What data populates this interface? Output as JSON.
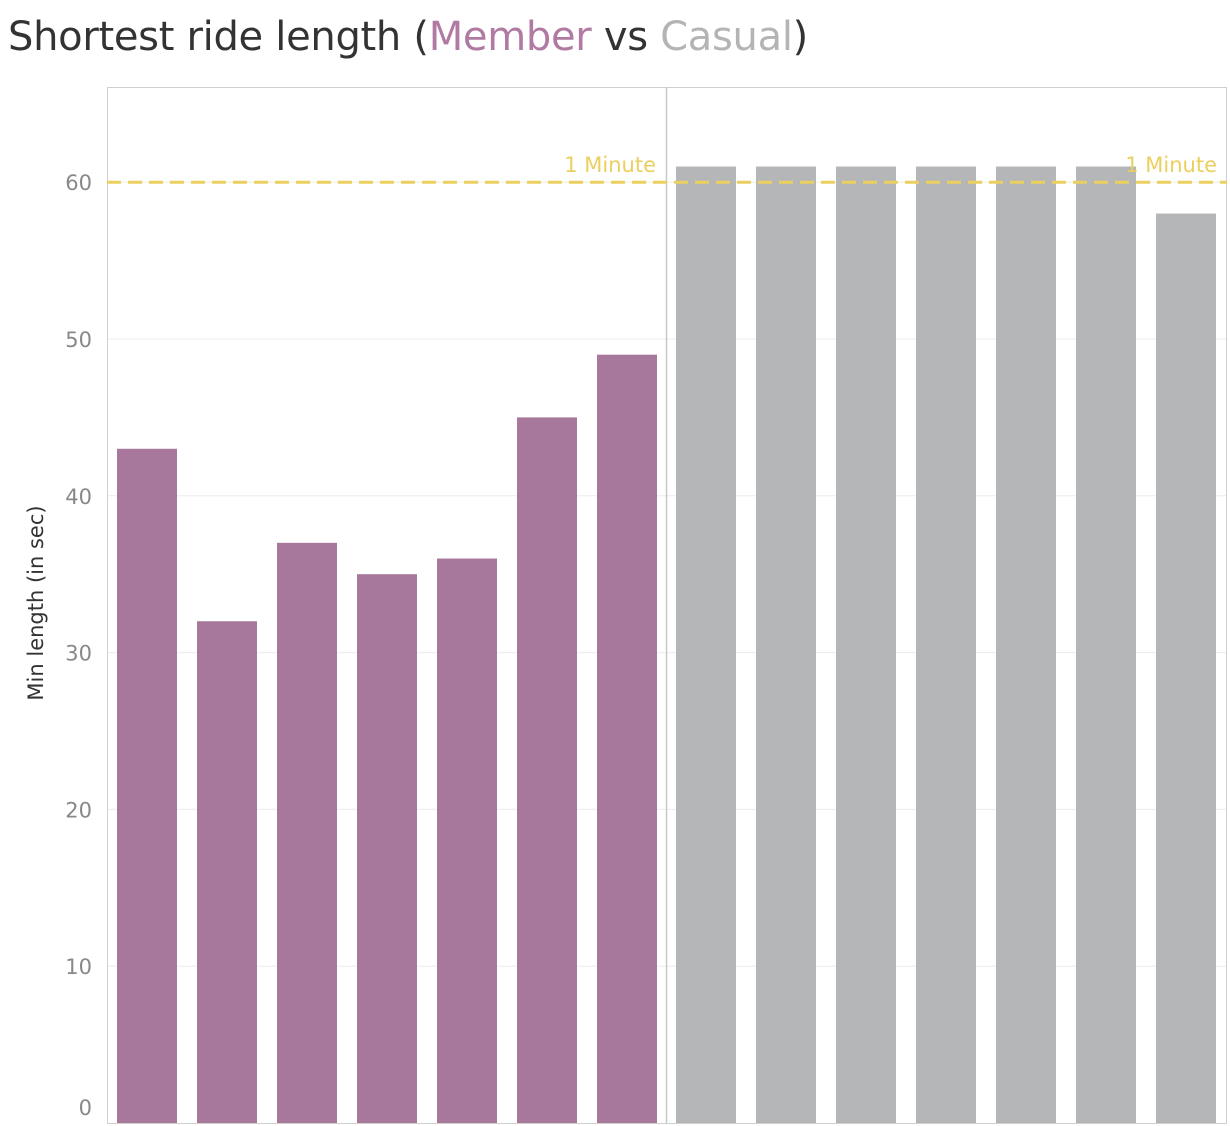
{
  "title": {
    "prefix": "Shortest ride length (",
    "member": "Member",
    "middle": " vs ",
    "casual": "Casual",
    "suffix": ")"
  },
  "colors": {
    "member": "#a8779c",
    "casual": "#b4b6b8",
    "reference": "#ebcf5f",
    "member_text": "#b07aa3",
    "casual_text": "#b4b4b4"
  },
  "chart_data": {
    "type": "bar",
    "title": "Shortest ride length (Member vs Casual)",
    "ylabel": "Min length (in sec)",
    "xlabel": "",
    "ylim": [
      0,
      66
    ],
    "yticks": [
      0,
      10,
      20,
      30,
      40,
      50,
      60
    ],
    "grid": true,
    "series": [
      {
        "name": "Member",
        "values": [
          43,
          32,
          37,
          35,
          36,
          45,
          49
        ]
      },
      {
        "name": "Casual",
        "values": [
          61,
          61,
          61,
          61,
          61,
          61,
          58
        ]
      }
    ],
    "reference_line": {
      "value": 60,
      "label": "1 Minute"
    }
  }
}
